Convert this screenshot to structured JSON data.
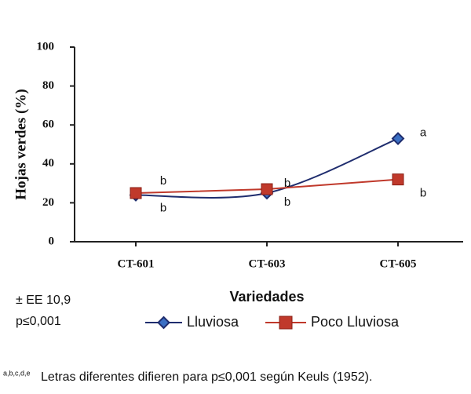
{
  "chart_data": {
    "type": "line",
    "ylabel": "Hojas verdes (%)",
    "xlabel": "Variedades",
    "categories": [
      "CT-601",
      "CT-603",
      "CT-605"
    ],
    "ylim": [
      0,
      100
    ],
    "yticks": [
      0,
      20,
      40,
      60,
      80,
      100
    ],
    "series": [
      {
        "name": "Lluviosa",
        "color": "#1f2d6e",
        "marker": "diamond",
        "smooth": true,
        "values": [
          24,
          25,
          53
        ],
        "letters": [
          "b",
          "b",
          "a"
        ]
      },
      {
        "name": "Poco Lluviosa",
        "color": "#c0392b",
        "marker": "square",
        "smooth": false,
        "values": [
          25,
          27,
          32
        ],
        "letters": [
          "b",
          "b",
          "b"
        ]
      }
    ],
    "notes": [
      "± EE 10,9",
      "p≤0,001"
    ],
    "footnote": {
      "superscript": "a,b,c,d,e",
      "text": "Letras diferentes difieren para p≤0,001 según Keuls (1952)."
    }
  }
}
